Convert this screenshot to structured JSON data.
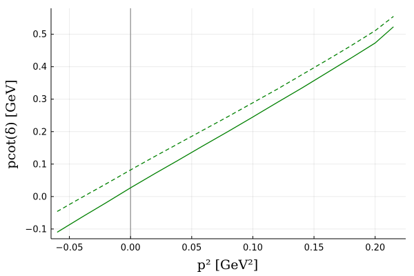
{
  "chart_data": {
    "type": "line",
    "title": "",
    "xlabel": "p² [GeV²]",
    "ylabel": "pcot(δ) [GeV]",
    "xlim": [
      -0.065,
      0.225
    ],
    "ylim": [
      -0.13,
      0.58
    ],
    "grid": true,
    "legend": "none",
    "x_ticks": [
      -0.05,
      0.0,
      0.05,
      0.1,
      0.15,
      0.2
    ],
    "x_tick_labels": [
      "−0.05",
      "0.00",
      "0.05",
      "0.10",
      "0.15",
      "0.20"
    ],
    "y_ticks": [
      -0.1,
      0.0,
      0.1,
      0.2,
      0.3,
      0.4,
      0.5
    ],
    "y_tick_labels": [
      "−0.1",
      "0.0",
      "0.1",
      "0.2",
      "0.3",
      "0.4",
      "0.5"
    ],
    "reference_line": {
      "axis": "x",
      "value": 0.0,
      "color": "#8c8c8c"
    },
    "series": [
      {
        "style": "solid",
        "color": "#008000",
        "x": [
          -0.06,
          -0.04,
          -0.02,
          0.0,
          0.02,
          0.04,
          0.06,
          0.08,
          0.1,
          0.12,
          0.14,
          0.16,
          0.18,
          0.2,
          0.215
        ],
        "y": [
          -0.11,
          -0.064,
          -0.019,
          0.027,
          0.071,
          0.114,
          0.158,
          0.201,
          0.245,
          0.29,
          0.334,
          0.38,
          0.426,
          0.473,
          0.523
        ]
      },
      {
        "style": "dashed",
        "color": "#008000",
        "x": [
          -0.06,
          -0.04,
          -0.02,
          0.0,
          0.02,
          0.04,
          0.06,
          0.08,
          0.1,
          0.12,
          0.14,
          0.16,
          0.18,
          0.2,
          0.215
        ],
        "y": [
          -0.046,
          -0.003,
          0.039,
          0.082,
          0.124,
          0.165,
          0.206,
          0.247,
          0.289,
          0.331,
          0.375,
          0.419,
          0.464,
          0.511,
          0.555
        ]
      }
    ]
  }
}
